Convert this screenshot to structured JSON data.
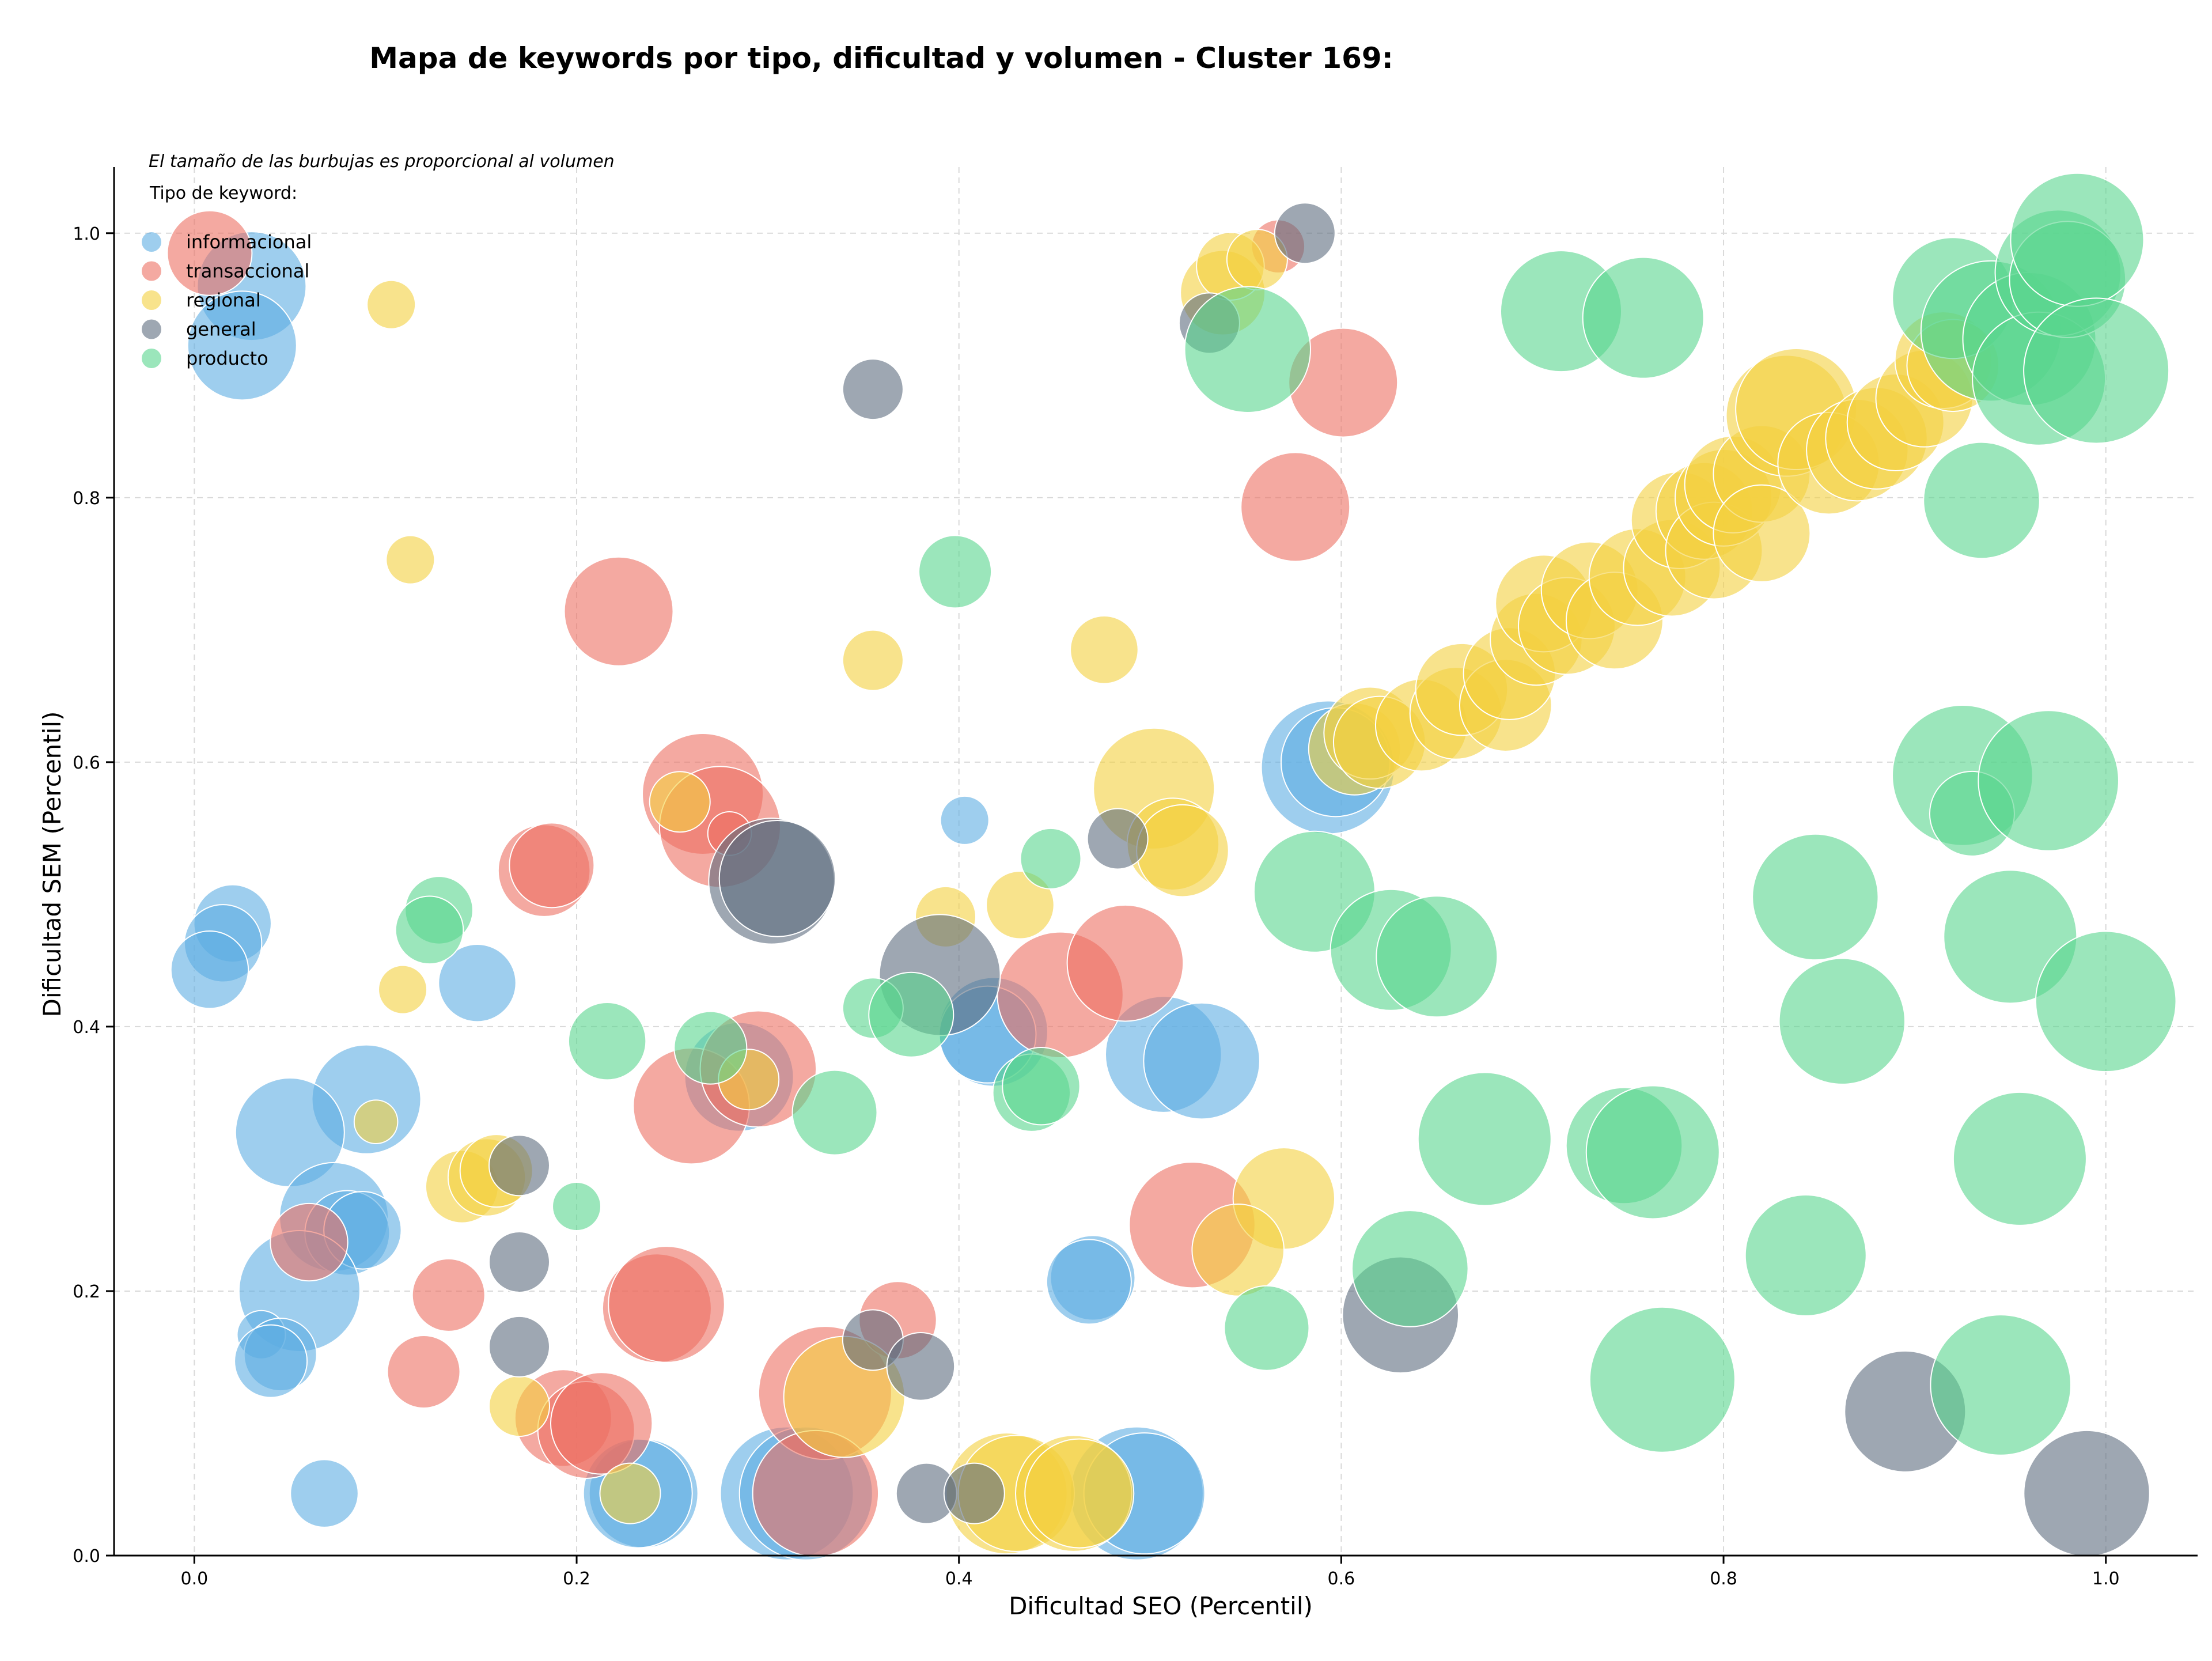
{
  "chart_data": {
    "type": "scatter",
    "title": "Mapa de keywords por tipo, dificultad y volumen - Cluster 169:",
    "xlabel": "Dificultad SEO (Percentil)",
    "ylabel": "Dificultad SEM (Percentil)",
    "note": "El tamaño de las burbujas es proporcional al volumen",
    "legend_title": "Tipo de keyword:",
    "legend_position": "top-left",
    "grid": true,
    "xlim": [
      -0.042,
      1.048
    ],
    "ylim": [
      0,
      1.05
    ],
    "x_ticks": [
      "0.0",
      "0.2",
      "0.4",
      "0.6",
      "0.8",
      "1.0"
    ],
    "y_ticks": [
      "0.0",
      "0.2",
      "0.4",
      "0.6",
      "0.8",
      "1.0"
    ],
    "size_note": "r = relative bubble size (proportional to volume)",
    "series": [
      {
        "name": "informacional",
        "color": "#5DADE2",
        "points": [
          {
            "x": 0.03,
            "y": 0.96,
            "r": 45
          },
          {
            "x": 0.025,
            "y": 0.915,
            "r": 45
          },
          {
            "x": 0.02,
            "y": 0.478,
            "r": 32
          },
          {
            "x": 0.015,
            "y": 0.463,
            "r": 32
          },
          {
            "x": 0.008,
            "y": 0.443,
            "r": 32
          },
          {
            "x": 0.148,
            "y": 0.433,
            "r": 32
          },
          {
            "x": 0.09,
            "y": 0.345,
            "r": 45
          },
          {
            "x": 0.05,
            "y": 0.32,
            "r": 45
          },
          {
            "x": 0.073,
            "y": 0.256,
            "r": 45
          },
          {
            "x": 0.08,
            "y": 0.244,
            "r": 35
          },
          {
            "x": 0.088,
            "y": 0.246,
            "r": 32
          },
          {
            "x": 0.055,
            "y": 0.2,
            "r": 50
          },
          {
            "x": 0.035,
            "y": 0.167,
            "r": 20
          },
          {
            "x": 0.045,
            "y": 0.152,
            "r": 30
          },
          {
            "x": 0.04,
            "y": 0.147,
            "r": 30
          },
          {
            "x": 0.068,
            "y": 0.047,
            "r": 28
          },
          {
            "x": 0.235,
            "y": 0.047,
            "r": 45
          },
          {
            "x": 0.232,
            "y": 0.047,
            "r": 45
          },
          {
            "x": 0.31,
            "y": 0.047,
            "r": 55
          },
          {
            "x": 0.32,
            "y": 0.047,
            "r": 55
          },
          {
            "x": 0.285,
            "y": 0.362,
            "r": 45
          },
          {
            "x": 0.403,
            "y": 0.556,
            "r": 20
          },
          {
            "x": 0.418,
            "y": 0.396,
            "r": 45
          },
          {
            "x": 0.415,
            "y": 0.394,
            "r": 40
          },
          {
            "x": 0.507,
            "y": 0.379,
            "r": 48
          },
          {
            "x": 0.527,
            "y": 0.374,
            "r": 48
          },
          {
            "x": 0.47,
            "y": 0.21,
            "r": 35
          },
          {
            "x": 0.468,
            "y": 0.207,
            "r": 35
          },
          {
            "x": 0.493,
            "y": 0.047,
            "r": 55
          },
          {
            "x": 0.497,
            "y": 0.047,
            "r": 50
          },
          {
            "x": 0.593,
            "y": 0.596,
            "r": 55
          },
          {
            "x": 0.597,
            "y": 0.6,
            "r": 45
          }
        ]
      },
      {
        "name": "transaccional",
        "color": "#EC7063",
        "points": [
          {
            "x": 0.008,
            "y": 0.985,
            "r": 35
          },
          {
            "x": 0.06,
            "y": 0.237,
            "r": 32
          },
          {
            "x": 0.12,
            "y": 0.139,
            "r": 30
          },
          {
            "x": 0.133,
            "y": 0.197,
            "r": 30
          },
          {
            "x": 0.183,
            "y": 0.518,
            "r": 38
          },
          {
            "x": 0.187,
            "y": 0.522,
            "r": 35
          },
          {
            "x": 0.222,
            "y": 0.714,
            "r": 45
          },
          {
            "x": 0.193,
            "y": 0.104,
            "r": 40
          },
          {
            "x": 0.205,
            "y": 0.095,
            "r": 40
          },
          {
            "x": 0.213,
            "y": 0.1,
            "r": 42
          },
          {
            "x": 0.242,
            "y": 0.187,
            "r": 45
          },
          {
            "x": 0.247,
            "y": 0.19,
            "r": 48
          },
          {
            "x": 0.266,
            "y": 0.576,
            "r": 50
          },
          {
            "x": 0.275,
            "y": 0.551,
            "r": 50
          },
          {
            "x": 0.26,
            "y": 0.34,
            "r": 48
          },
          {
            "x": 0.295,
            "y": 0.368,
            "r": 48
          },
          {
            "x": 0.28,
            "y": 0.546,
            "r": 18
          },
          {
            "x": 0.33,
            "y": 0.123,
            "r": 55
          },
          {
            "x": 0.325,
            "y": 0.047,
            "r": 52
          },
          {
            "x": 0.368,
            "y": 0.178,
            "r": 32
          },
          {
            "x": 0.453,
            "y": 0.424,
            "r": 52
          },
          {
            "x": 0.487,
            "y": 0.448,
            "r": 48
          },
          {
            "x": 0.522,
            "y": 0.25,
            "r": 52
          },
          {
            "x": 0.576,
            "y": 0.793,
            "r": 45
          },
          {
            "x": 0.601,
            "y": 0.887,
            "r": 45
          },
          {
            "x": 0.567,
            "y": 0.99,
            "r": 22
          }
        ]
      },
      {
        "name": "regional",
        "color": "#F4D03F",
        "points": [
          {
            "x": 0.103,
            "y": 0.946,
            "r": 20
          },
          {
            "x": 0.113,
            "y": 0.753,
            "r": 20
          },
          {
            "x": 0.109,
            "y": 0.428,
            "r": 20
          },
          {
            "x": 0.095,
            "y": 0.328,
            "r": 18
          },
          {
            "x": 0.14,
            "y": 0.279,
            "r": 30
          },
          {
            "x": 0.153,
            "y": 0.286,
            "r": 32
          },
          {
            "x": 0.158,
            "y": 0.291,
            "r": 30
          },
          {
            "x": 0.17,
            "y": 0.113,
            "r": 25
          },
          {
            "x": 0.228,
            "y": 0.047,
            "r": 25
          },
          {
            "x": 0.254,
            "y": 0.57,
            "r": 25
          },
          {
            "x": 0.29,
            "y": 0.36,
            "r": 25
          },
          {
            "x": 0.34,
            "y": 0.12,
            "r": 50
          },
          {
            "x": 0.355,
            "y": 0.677,
            "r": 25
          },
          {
            "x": 0.393,
            "y": 0.483,
            "r": 25
          },
          {
            "x": 0.432,
            "y": 0.492,
            "r": 28
          },
          {
            "x": 0.476,
            "y": 0.685,
            "r": 28
          },
          {
            "x": 0.425,
            "y": 0.047,
            "r": 50
          },
          {
            "x": 0.43,
            "y": 0.047,
            "r": 48
          },
          {
            "x": 0.46,
            "y": 0.047,
            "r": 48
          },
          {
            "x": 0.463,
            "y": 0.047,
            "r": 45
          },
          {
            "x": 0.502,
            "y": 0.58,
            "r": 50
          },
          {
            "x": 0.512,
            "y": 0.538,
            "r": 38
          },
          {
            "x": 0.517,
            "y": 0.533,
            "r": 38
          },
          {
            "x": 0.57,
            "y": 0.27,
            "r": 42
          },
          {
            "x": 0.546,
            "y": 0.231,
            "r": 38
          },
          {
            "x": 0.538,
            "y": 0.955,
            "r": 35
          },
          {
            "x": 0.542,
            "y": 0.975,
            "r": 28
          },
          {
            "x": 0.556,
            "y": 0.98,
            "r": 25
          },
          {
            "x": 0.607,
            "y": 0.61,
            "r": 38
          },
          {
            "x": 0.615,
            "y": 0.622,
            "r": 38
          },
          {
            "x": 0.62,
            "y": 0.615,
            "r": 38
          },
          {
            "x": 0.642,
            "y": 0.628,
            "r": 38
          },
          {
            "x": 0.66,
            "y": 0.637,
            "r": 38
          },
          {
            "x": 0.663,
            "y": 0.655,
            "r": 38
          },
          {
            "x": 0.686,
            "y": 0.643,
            "r": 38
          },
          {
            "x": 0.688,
            "y": 0.667,
            "r": 38
          },
          {
            "x": 0.702,
            "y": 0.693,
            "r": 38
          },
          {
            "x": 0.706,
            "y": 0.72,
            "r": 40
          },
          {
            "x": 0.718,
            "y": 0.703,
            "r": 40
          },
          {
            "x": 0.73,
            "y": 0.73,
            "r": 40
          },
          {
            "x": 0.743,
            "y": 0.707,
            "r": 40
          },
          {
            "x": 0.755,
            "y": 0.74,
            "r": 40
          },
          {
            "x": 0.773,
            "y": 0.747,
            "r": 40
          },
          {
            "x": 0.777,
            "y": 0.783,
            "r": 40
          },
          {
            "x": 0.79,
            "y": 0.79,
            "r": 40
          },
          {
            "x": 0.795,
            "y": 0.76,
            "r": 40
          },
          {
            "x": 0.8,
            "y": 0.8,
            "r": 40
          },
          {
            "x": 0.805,
            "y": 0.81,
            "r": 40
          },
          {
            "x": 0.82,
            "y": 0.818,
            "r": 40
          },
          {
            "x": 0.82,
            "y": 0.773,
            "r": 40
          },
          {
            "x": 0.833,
            "y": 0.862,
            "r": 50
          },
          {
            "x": 0.838,
            "y": 0.867,
            "r": 50
          },
          {
            "x": 0.855,
            "y": 0.826,
            "r": 42
          },
          {
            "x": 0.87,
            "y": 0.836,
            "r": 42
          },
          {
            "x": 0.88,
            "y": 0.845,
            "r": 42
          },
          {
            "x": 0.89,
            "y": 0.857,
            "r": 40
          },
          {
            "x": 0.905,
            "y": 0.875,
            "r": 40
          },
          {
            "x": 0.915,
            "y": 0.904,
            "r": 40
          },
          {
            "x": 0.92,
            "y": 0.9,
            "r": 38
          }
        ]
      },
      {
        "name": "general",
        "color": "#5D6D7E",
        "points": [
          {
            "x": 0.17,
            "y": 0.295,
            "r": 25
          },
          {
            "x": 0.17,
            "y": 0.222,
            "r": 25
          },
          {
            "x": 0.17,
            "y": 0.158,
            "r": 25
          },
          {
            "x": 0.302,
            "y": 0.51,
            "r": 52
          },
          {
            "x": 0.305,
            "y": 0.512,
            "r": 48
          },
          {
            "x": 0.355,
            "y": 0.882,
            "r": 25
          },
          {
            "x": 0.355,
            "y": 0.163,
            "r": 25
          },
          {
            "x": 0.38,
            "y": 0.143,
            "r": 28
          },
          {
            "x": 0.383,
            "y": 0.047,
            "r": 25
          },
          {
            "x": 0.39,
            "y": 0.439,
            "r": 50
          },
          {
            "x": 0.408,
            "y": 0.047,
            "r": 25
          },
          {
            "x": 0.483,
            "y": 0.542,
            "r": 25
          },
          {
            "x": 0.531,
            "y": 0.932,
            "r": 25
          },
          {
            "x": 0.581,
            "y": 1.0,
            "r": 25
          },
          {
            "x": 0.631,
            "y": 0.182,
            "r": 48
          },
          {
            "x": 0.895,
            "y": 0.109,
            "r": 50
          },
          {
            "x": 0.99,
            "y": 0.047,
            "r": 52
          }
        ]
      },
      {
        "name": "producto",
        "color": "#58D68D",
        "points": [
          {
            "x": 0.128,
            "y": 0.488,
            "r": 28
          },
          {
            "x": 0.123,
            "y": 0.473,
            "r": 28
          },
          {
            "x": 0.2,
            "y": 0.264,
            "r": 20
          },
          {
            "x": 0.216,
            "y": 0.389,
            "r": 32
          },
          {
            "x": 0.27,
            "y": 0.384,
            "r": 30
          },
          {
            "x": 0.335,
            "y": 0.335,
            "r": 35
          },
          {
            "x": 0.355,
            "y": 0.414,
            "r": 25
          },
          {
            "x": 0.375,
            "y": 0.409,
            "r": 35
          },
          {
            "x": 0.398,
            "y": 0.744,
            "r": 30
          },
          {
            "x": 0.438,
            "y": 0.35,
            "r": 32
          },
          {
            "x": 0.443,
            "y": 0.355,
            "r": 32
          },
          {
            "x": 0.448,
            "y": 0.527,
            "r": 25
          },
          {
            "x": 0.551,
            "y": 0.912,
            "r": 52
          },
          {
            "x": 0.561,
            "y": 0.172,
            "r": 35
          },
          {
            "x": 0.586,
            "y": 0.502,
            "r": 50
          },
          {
            "x": 0.626,
            "y": 0.458,
            "r": 50
          },
          {
            "x": 0.65,
            "y": 0.453,
            "r": 50
          },
          {
            "x": 0.636,
            "y": 0.217,
            "r": 48
          },
          {
            "x": 0.675,
            "y": 0.315,
            "r": 55
          },
          {
            "x": 0.715,
            "y": 0.941,
            "r": 50
          },
          {
            "x": 0.748,
            "y": 0.31,
            "r": 48
          },
          {
            "x": 0.758,
            "y": 0.936,
            "r": 50
          },
          {
            "x": 0.763,
            "y": 0.305,
            "r": 55
          },
          {
            "x": 0.768,
            "y": 0.133,
            "r": 60
          },
          {
            "x": 0.843,
            "y": 0.227,
            "r": 50
          },
          {
            "x": 0.848,
            "y": 0.498,
            "r": 52
          },
          {
            "x": 0.862,
            "y": 0.404,
            "r": 52
          },
          {
            "x": 0.92,
            "y": 0.951,
            "r": 50
          },
          {
            "x": 0.925,
            "y": 0.59,
            "r": 58
          },
          {
            "x": 0.93,
            "y": 0.561,
            "r": 35
          },
          {
            "x": 0.935,
            "y": 0.798,
            "r": 48
          },
          {
            "x": 0.94,
            "y": 0.926,
            "r": 58
          },
          {
            "x": 0.945,
            "y": 0.129,
            "r": 58
          },
          {
            "x": 0.95,
            "y": 0.468,
            "r": 55
          },
          {
            "x": 0.955,
            "y": 0.3,
            "r": 55
          },
          {
            "x": 0.96,
            "y": 0.92,
            "r": 55
          },
          {
            "x": 0.965,
            "y": 0.89,
            "r": 55
          },
          {
            "x": 0.97,
            "y": 0.586,
            "r": 58
          },
          {
            "x": 0.975,
            "y": 0.97,
            "r": 52
          },
          {
            "x": 0.98,
            "y": 0.965,
            "r": 48
          },
          {
            "x": 0.985,
            "y": 0.995,
            "r": 55
          },
          {
            "x": 0.995,
            "y": 0.896,
            "r": 60
          },
          {
            "x": 1.0,
            "y": 0.419,
            "r": 58
          }
        ]
      }
    ]
  }
}
